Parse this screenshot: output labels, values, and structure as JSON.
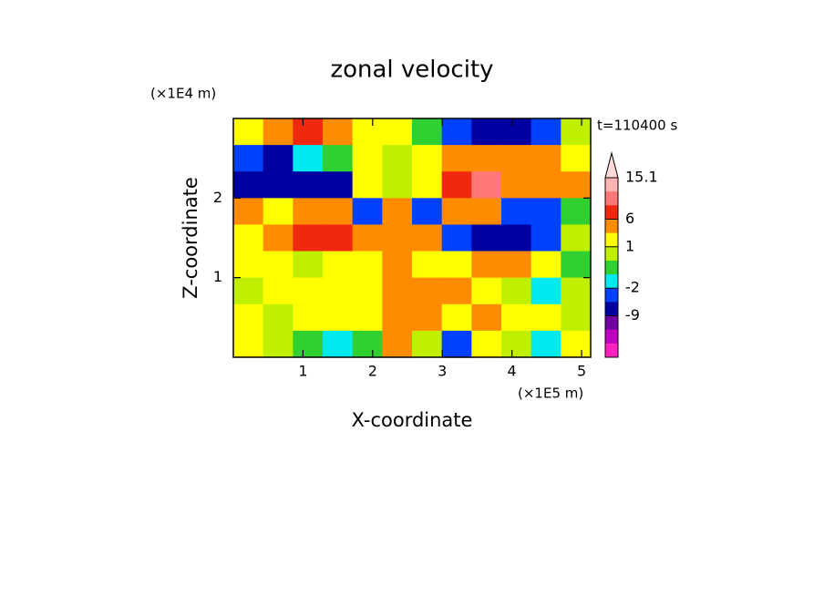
{
  "chart_data": {
    "type": "contour",
    "title": "zonal velocity",
    "xlabel": "X-coordinate",
    "ylabel": "Z-coordinate",
    "xunit": "(×1E5 m)",
    "yunit": "(×1E4 m)",
    "time_label": "t=110400 s",
    "xlim": [
      0,
      5.13
    ],
    "ylim": [
      0,
      3
    ],
    "xticks": [
      1,
      2,
      3,
      4,
      5
    ],
    "yticks": [
      1,
      2
    ],
    "z": [
      [
        2,
        4,
        7,
        5,
        2,
        1,
        -1,
        -5,
        -8,
        -6,
        -3,
        0
      ],
      [
        -4,
        -6,
        -2,
        -1,
        1,
        0,
        2,
        4,
        3,
        5,
        4,
        2
      ],
      [
        -6,
        -8,
        -9,
        -8,
        1,
        0,
        2,
        7,
        9,
        5,
        4,
        3
      ],
      [
        3,
        2,
        3,
        4,
        -4,
        3,
        -5,
        4,
        3,
        -3,
        -4,
        -1
      ],
      [
        2,
        4,
        7,
        6,
        3,
        5,
        3,
        -3,
        -7,
        -9,
        -3,
        0
      ],
      [
        1,
        1,
        0,
        1,
        2,
        3,
        2,
        1,
        3,
        4,
        2,
        -0.5
      ],
      [
        0.5,
        1,
        2,
        1,
        2,
        4,
        3,
        3,
        1,
        0.5,
        -1.5,
        0.5
      ],
      [
        1,
        0.5,
        1,
        1,
        2,
        3,
        4,
        2,
        3,
        2,
        1,
        0.5
      ],
      [
        2,
        0.5,
        -0.5,
        -1.5,
        -0.5,
        3,
        0.5,
        -3,
        1,
        0.5,
        -1.5,
        1
      ]
    ],
    "levels": [
      15.1,
      12,
      9,
      6,
      3,
      1,
      0,
      -1,
      -2,
      -5,
      -9,
      -12,
      -15
    ],
    "colors": [
      "#ffd8d8",
      "#ffb4b4",
      "#ff7878",
      "#f02810",
      "#ff8c00",
      "#ffff00",
      "#c0f000",
      "#30d030",
      "#00e8f0",
      "#0040ff",
      "#0000a0",
      "#7000a0",
      "#c000c0",
      "#ff20c0"
    ],
    "cticks": [
      15.1,
      6,
      1,
      -2,
      -9
    ]
  }
}
